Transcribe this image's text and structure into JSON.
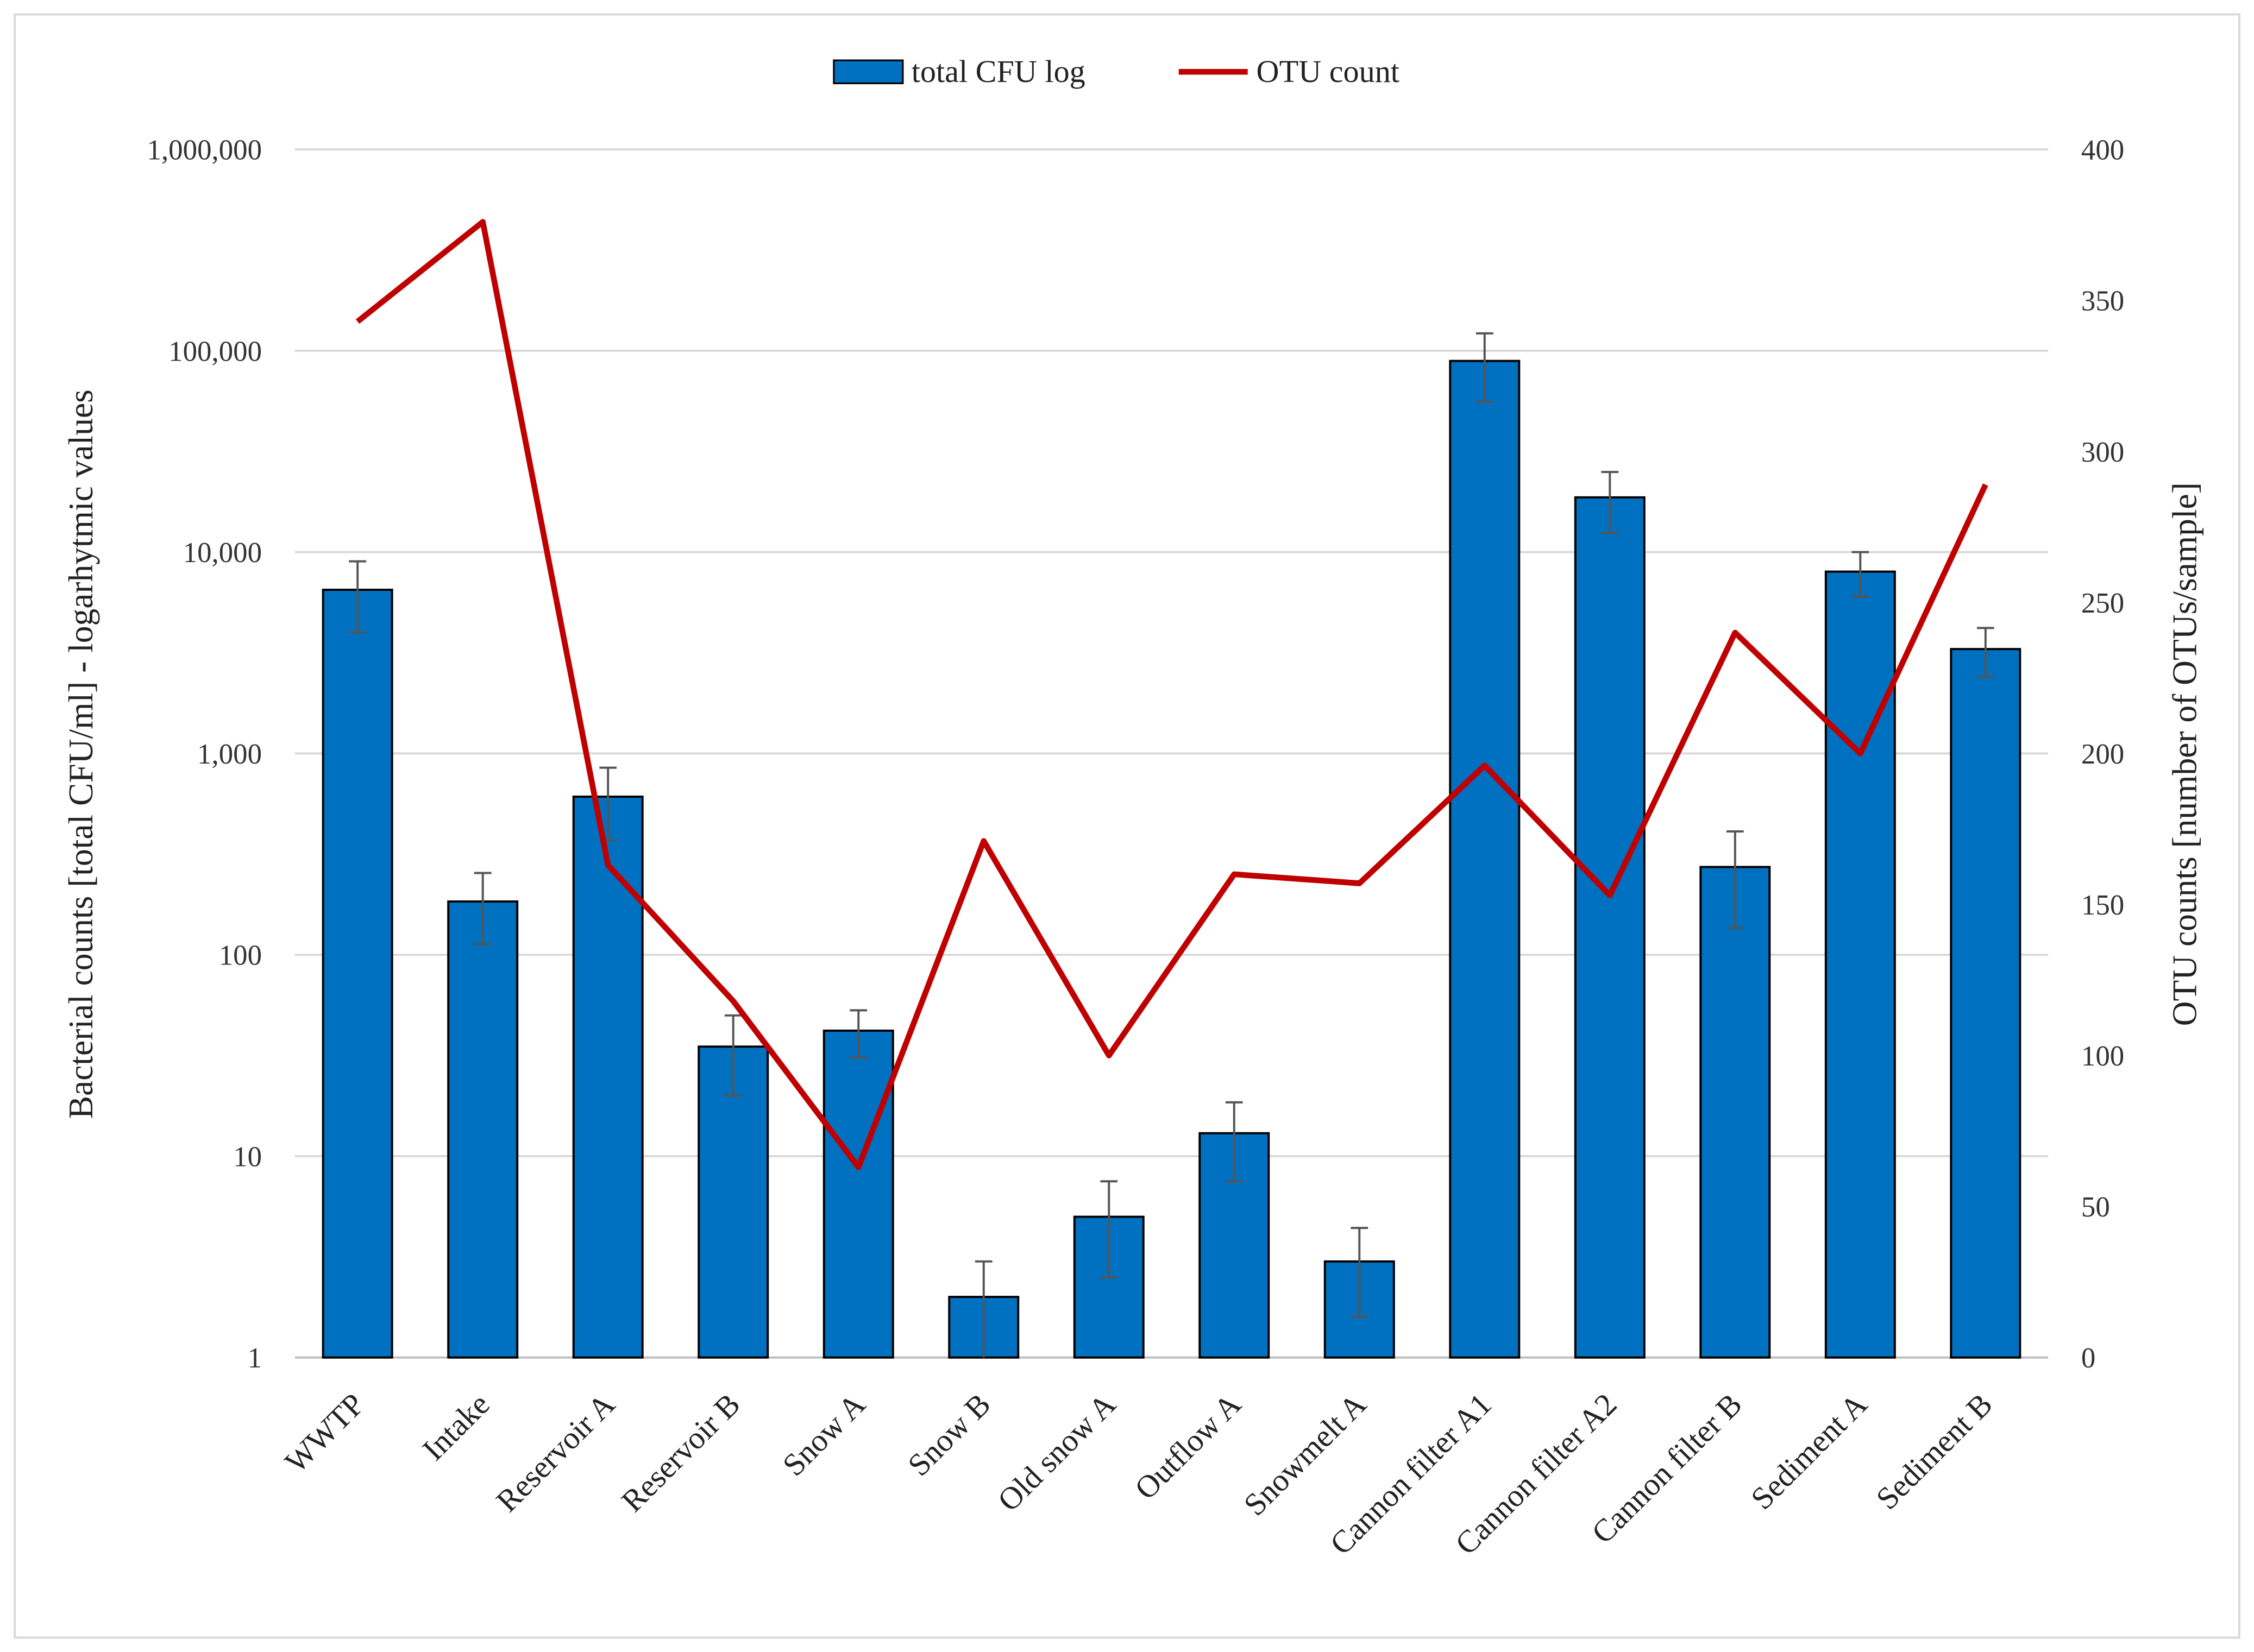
{
  "chart_data": {
    "type": "bar+line",
    "categories": [
      "WWTP",
      "Intake",
      "Reservoir A",
      "Reservoir B",
      "Snow A",
      "Snow B",
      "Old snow A",
      "Outflow A",
      "Snowmelt A",
      "Cannon filter A1",
      "Cannon filter A2",
      "Cannon filter B",
      "Sediment A",
      "Sediment B"
    ],
    "series": [
      {
        "name": "total CFU log",
        "type": "bar",
        "axis": "left",
        "color": "#0070c0",
        "values": [
          6500,
          184,
          610,
          35,
          42,
          2,
          5,
          13,
          3,
          89000,
          18700,
          273,
          8000,
          3300
        ],
        "error_upper": [
          9000,
          255,
          850,
          50,
          53,
          3,
          7.5,
          18.5,
          4.4,
          122000,
          25000,
          410,
          10000,
          4200
        ]
      },
      {
        "name": "OTU count",
        "type": "line",
        "axis": "right",
        "color": "#c00000",
        "values": [
          343,
          376,
          163,
          118,
          63,
          171,
          100,
          160,
          157,
          196,
          153,
          240,
          200,
          289
        ]
      }
    ],
    "left_axis": {
      "label": "Bacterial counts [total CFU/ml] - logarhytmic values",
      "scale": "log",
      "range": [
        1,
        1000000
      ],
      "ticks": [
        1,
        10,
        100,
        1000,
        10000,
        100000,
        1000000
      ],
      "tick_labels": [
        "1",
        "10",
        "100",
        "1,000",
        "10,000",
        "100,000",
        "1,000,000"
      ]
    },
    "right_axis": {
      "label": "OTU counts [number of OTUs/sample]",
      "scale": "linear",
      "range": [
        0,
        400
      ],
      "ticks": [
        0,
        50,
        100,
        150,
        200,
        250,
        300,
        350,
        400
      ],
      "tick_labels": [
        "0",
        "50",
        "100",
        "150",
        "200",
        "250",
        "300",
        "350",
        "400"
      ]
    },
    "grid": true,
    "legend_position": "top"
  }
}
